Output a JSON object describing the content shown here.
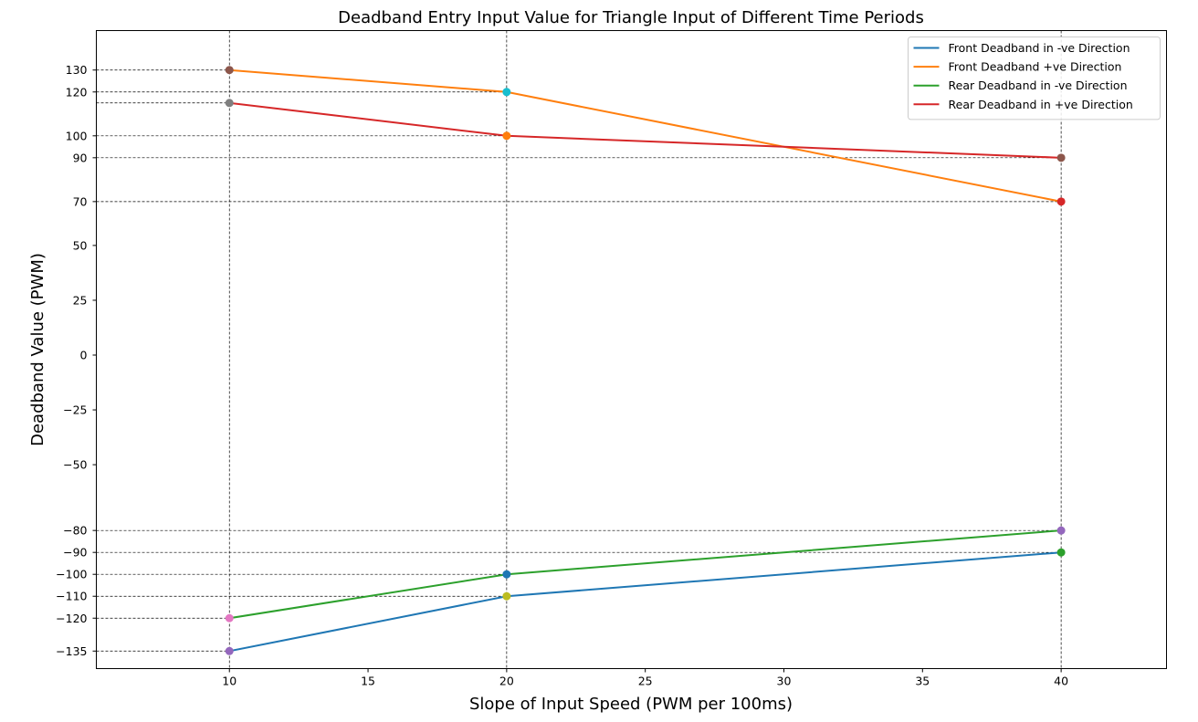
{
  "chart_data": {
    "type": "line",
    "title": "Deadband Entry Input Value for Triangle Input of Different Time Periods",
    "xlabel": "Slope of Input Speed (PWM per 100ms)",
    "ylabel": "Deadband Value (PWM)",
    "xlim": [
      5.2,
      43.8
    ],
    "ylim": [
      -143,
      148
    ],
    "x_ticks": [
      10,
      15,
      20,
      25,
      30,
      35,
      40
    ],
    "y_ticks": [
      -135,
      -120,
      -110,
      -100,
      -90,
      -80,
      -50,
      -25,
      0,
      25,
      50,
      70,
      90,
      100,
      120,
      130
    ],
    "y_tick_labels": [
      "−135",
      "−120",
      "−110",
      "−100",
      "−90",
      "−80",
      "−50",
      "−25",
      "0",
      "25",
      "50",
      "70",
      "90",
      "100",
      "120",
      "130"
    ],
    "x": [
      10,
      20,
      40
    ],
    "series": [
      {
        "name": "Front Deadband in -ve Direction",
        "color": "#1f77b4",
        "values": [
          -135,
          -110,
          -90
        ]
      },
      {
        "name": "Front Deadband +ve Direction",
        "color": "#ff7f0e",
        "values": [
          130,
          120,
          70
        ]
      },
      {
        "name": "Rear Deadband in -ve Direction",
        "color": "#2ca02c",
        "values": [
          -120,
          -100,
          -80
        ]
      },
      {
        "name": "Rear Deadband in +ve Direction",
        "color": "#d62728",
        "values": [
          115,
          100,
          90
        ]
      }
    ],
    "markers": [
      {
        "x": 10,
        "y": -135,
        "color": "#9467bd"
      },
      {
        "x": 20,
        "y": -110,
        "color": "#bcbd22"
      },
      {
        "x": 40,
        "y": -90,
        "color": "#2ca02c"
      },
      {
        "x": 10,
        "y": 130,
        "color": "#8c564b"
      },
      {
        "x": 20,
        "y": 120,
        "color": "#17becf"
      },
      {
        "x": 40,
        "y": 70,
        "color": "#d62728"
      },
      {
        "x": 10,
        "y": -120,
        "color": "#e377c2"
      },
      {
        "x": 20,
        "y": -100,
        "color": "#1f77b4"
      },
      {
        "x": 40,
        "y": -80,
        "color": "#9467bd"
      },
      {
        "x": 10,
        "y": 115,
        "color": "#7f7f7f"
      },
      {
        "x": 20,
        "y": 100,
        "color": "#ff7f0e"
      },
      {
        "x": 40,
        "y": 90,
        "color": "#8c564b"
      }
    ],
    "reference_lines": {
      "vertical_x": [
        10,
        20,
        40
      ],
      "horizontal": [
        {
          "y": 130,
          "x_end": 10
        },
        {
          "y": 120,
          "x_end": 20
        },
        {
          "y": 115,
          "x_end": 10
        },
        {
          "y": 100,
          "x_end": 20
        },
        {
          "y": 90,
          "x_end": 40
        },
        {
          "y": 70,
          "x_end": 40
        },
        {
          "y": -80,
          "x_end": 40
        },
        {
          "y": -90,
          "x_end": 40
        },
        {
          "y": -100,
          "x_end": 20
        },
        {
          "y": -110,
          "x_end": 20
        },
        {
          "y": -120,
          "x_end": 10
        },
        {
          "y": -135,
          "x_end": 10
        }
      ],
      "style": "dashed",
      "color": "#000000"
    },
    "grid": false,
    "legend_position": "top-right"
  }
}
